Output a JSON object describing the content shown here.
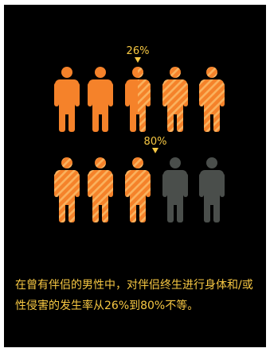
{
  "chart_data": {
    "type": "pictograph",
    "rows": [
      {
        "percent": 26,
        "label": "26%",
        "icons": 5
      },
      {
        "percent": 80,
        "label": "80%",
        "icons": 5
      }
    ],
    "colors": {
      "background": "#000000",
      "solid": "#f5822a",
      "hatch_light": "#fab25e",
      "empty": "#4a4e4b",
      "marker": "#f7c843"
    }
  },
  "caption": "在曾有伴侣的男性中，对伴侣终生进行身体和/或性侵害的发生率从26%到80%不等。"
}
